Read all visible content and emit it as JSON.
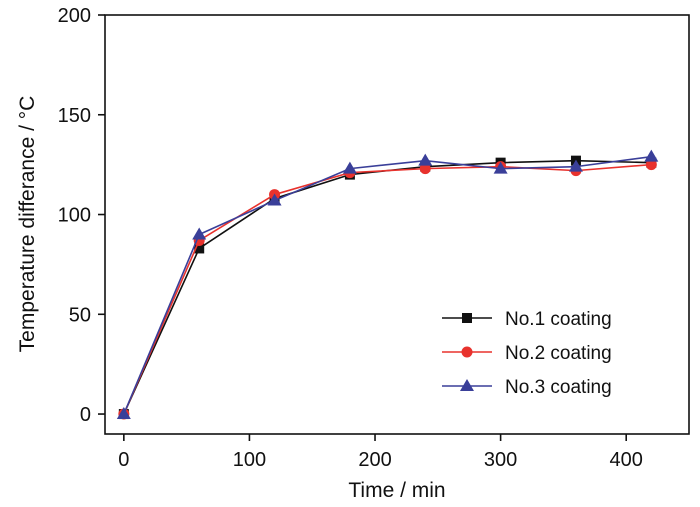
{
  "chart_data": {
    "type": "line",
    "title": "",
    "xlabel": "Time / min",
    "ylabel": "Temperature differance  / °C",
    "xlim": [
      -15,
      450
    ],
    "ylim": [
      -10,
      200
    ],
    "xticks": [
      0,
      100,
      200,
      300,
      400
    ],
    "yticks": [
      0,
      50,
      100,
      150,
      200
    ],
    "grid": false,
    "legend_position": "bottom-right",
    "series": [
      {
        "name": "No.1 coating",
        "color": "#111111",
        "marker": "square",
        "x": [
          0,
          60,
          120,
          180,
          240,
          300,
          360,
          420
        ],
        "y": [
          0,
          83,
          108,
          120,
          124,
          126,
          127,
          126
        ]
      },
      {
        "name": "No.2 coating",
        "color": "#e8322d",
        "marker": "circle",
        "x": [
          0,
          60,
          120,
          180,
          240,
          300,
          360,
          420
        ],
        "y": [
          0,
          87,
          110,
          121,
          123,
          124,
          122,
          125
        ]
      },
      {
        "name": "No.3 coating",
        "color": "#3a3f99",
        "marker": "triangle",
        "x": [
          0,
          60,
          120,
          180,
          240,
          300,
          360,
          420
        ],
        "y": [
          0,
          90,
          107,
          123,
          127,
          123,
          124,
          129
        ]
      }
    ]
  }
}
